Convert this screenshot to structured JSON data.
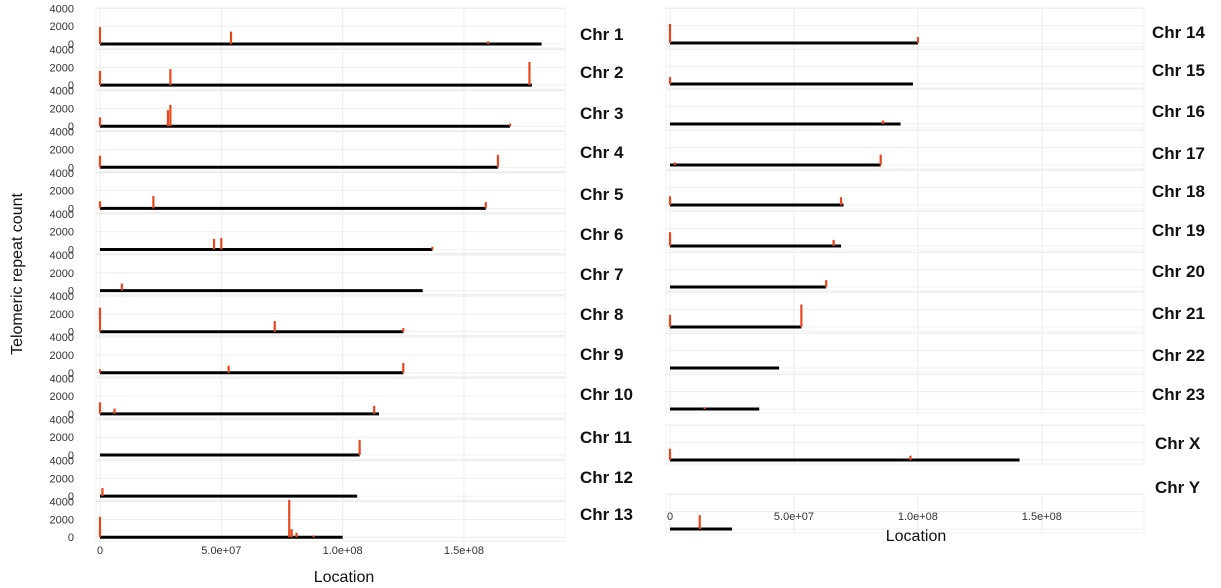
{
  "chart_data": {
    "type": "line",
    "ylabel": "Telomeric repeat count",
    "xlabel": "Location",
    "y_ticks": [
      "4000",
      "2000",
      "0"
    ],
    "x_tick_labels": [
      "0",
      "5.0e+07",
      "1.0e+08",
      "1.5e+08"
    ],
    "x_ticks": [
      0,
      50000000,
      100000000,
      150000000
    ],
    "xlim": [
      0,
      190000000
    ],
    "ylim": [
      0,
      4500
    ],
    "colors": {
      "peak": "#e8471e",
      "baseline": "#000000",
      "grid": "#ebebeb",
      "panel_border": "#e6e6e6"
    },
    "panels": [
      {
        "series": [
          {
            "name": "Chr 1",
            "length": 182000000,
            "peaks": [
              [
                0,
                1900
              ],
              [
                54000000,
                1400
              ],
              [
                160000000,
                300
              ]
            ]
          },
          {
            "name": "Chr 2",
            "length": 178000000,
            "peaks": [
              [
                0,
                1600
              ],
              [
                29000000,
                1800
              ],
              [
                177000000,
                2600
              ]
            ]
          },
          {
            "name": "Chr 3",
            "length": 169000000,
            "peaks": [
              [
                0,
                1000
              ],
              [
                28000000,
                1800
              ],
              [
                29000000,
                2400
              ],
              [
                169000000,
                300
              ]
            ]
          },
          {
            "name": "Chr 4",
            "length": 164000000,
            "peaks": [
              [
                0,
                1300
              ],
              [
                164000000,
                1400
              ]
            ]
          },
          {
            "name": "Chr 5",
            "length": 159000000,
            "peaks": [
              [
                0,
                800
              ],
              [
                22000000,
                1400
              ],
              [
                159000000,
                700
              ]
            ]
          },
          {
            "name": "Chr 6",
            "length": 137000000,
            "peaks": [
              [
                47000000,
                1200
              ],
              [
                50000000,
                1300
              ],
              [
                137000000,
                300
              ]
            ]
          },
          {
            "name": "Chr 7",
            "length": 133000000,
            "peaks": [
              [
                9000000,
                800
              ]
            ]
          },
          {
            "name": "Chr 8",
            "length": 125000000,
            "peaks": [
              [
                0,
                2700
              ],
              [
                72000000,
                1200
              ],
              [
                125000000,
                400
              ]
            ]
          },
          {
            "name": "Chr 9",
            "length": 125000000,
            "peaks": [
              [
                0,
                400
              ],
              [
                53000000,
                800
              ],
              [
                125000000,
                1100
              ]
            ]
          },
          {
            "name": "Chr 10",
            "length": 115000000,
            "peaks": [
              [
                0,
                1300
              ],
              [
                6000000,
                600
              ],
              [
                113000000,
                900
              ]
            ]
          },
          {
            "name": "Chr 11",
            "length": 107000000,
            "peaks": [
              [
                107000000,
                1700
              ]
            ]
          },
          {
            "name": "Chr 12",
            "length": 106000000,
            "peaks": [
              [
                1000000,
                900
              ]
            ]
          },
          {
            "name": "Chr 13",
            "length": 100000000,
            "peaks": [
              [
                0,
                2300
              ],
              [
                78000000,
                4200
              ],
              [
                79000000,
                900
              ],
              [
                81000000,
                500
              ],
              [
                88000000,
                200
              ]
            ]
          }
        ]
      },
      {
        "series": [
          {
            "name": "Chr 14",
            "length": 100000000,
            "peaks": [
              [
                0,
                2200
              ],
              [
                100000000,
                700
              ]
            ]
          },
          {
            "name": "Chr 15",
            "length": 98000000,
            "peaks": [
              [
                0,
                800
              ]
            ]
          },
          {
            "name": "Chr 16",
            "length": 93000000,
            "peaks": [
              [
                86000000,
                400
              ]
            ]
          },
          {
            "name": "Chr 17",
            "length": 85000000,
            "peaks": [
              [
                2000000,
                300
              ],
              [
                85000000,
                1200
              ]
            ]
          },
          {
            "name": "Chr 18",
            "length": 70000000,
            "peaks": [
              [
                0,
                1000
              ],
              [
                69000000,
                900
              ]
            ]
          },
          {
            "name": "Chr 19",
            "length": 69000000,
            "peaks": [
              [
                0,
                1600
              ],
              [
                66000000,
                700
              ]
            ]
          },
          {
            "name": "Chr 20",
            "length": 63000000,
            "peaks": [
              [
                63000000,
                800
              ]
            ]
          },
          {
            "name": "Chr 21",
            "length": 53000000,
            "peaks": [
              [
                0,
                1400
              ],
              [
                53000000,
                2600
              ]
            ]
          },
          {
            "name": "Chr 22",
            "length": 44000000,
            "peaks": []
          },
          {
            "name": "Chr 23",
            "length": 36000000,
            "peaks": [
              [
                14000000,
                200
              ]
            ]
          },
          {
            "name": "Chr X",
            "length": 141000000,
            "peaks": [
              [
                0,
                1300
              ],
              [
                97000000,
                500
              ]
            ]
          },
          {
            "name": "Chr Y",
            "length": 25000000,
            "peaks": [
              [
                12000000,
                1600
              ]
            ]
          }
        ]
      }
    ]
  }
}
